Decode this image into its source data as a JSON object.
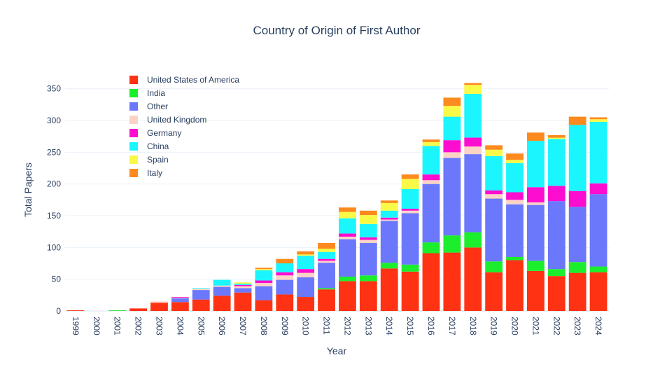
{
  "chart_data": {
    "type": "bar",
    "stacked": true,
    "title": "Country of Origin of First Author",
    "xlabel": "Year",
    "ylabel": "Total Papers",
    "ylim": [
      0,
      385
    ],
    "yticks": [
      0,
      50,
      100,
      150,
      200,
      250,
      300,
      350
    ],
    "grid": true,
    "legend_position": "top-left",
    "categories": [
      "1999",
      "2000",
      "2001",
      "2002",
      "2003",
      "2004",
      "2005",
      "2006",
      "2007",
      "2008",
      "2009",
      "2010",
      "2011",
      "2012",
      "2013",
      "2014",
      "2015",
      "2016",
      "2017",
      "2018",
      "2019",
      "2020",
      "2021",
      "2022",
      "2023",
      "2024"
    ],
    "series": [
      {
        "name": "United States of America",
        "color": "#ff3214",
        "values": [
          1,
          0,
          0,
          4,
          13,
          14,
          18,
          24,
          29,
          17,
          26,
          22,
          34,
          47,
          47,
          67,
          62,
          91,
          92,
          100,
          61,
          80,
          63,
          55,
          60,
          61
        ]
      },
      {
        "name": "India",
        "color": "#1aee2d",
        "values": [
          0,
          0,
          1,
          0,
          0,
          0,
          0,
          0,
          0,
          0,
          0,
          0,
          2,
          7,
          9,
          9,
          11,
          17,
          27,
          24,
          17,
          5,
          16,
          11,
          17,
          9
        ]
      },
      {
        "name": "Other",
        "color": "#6b78fb",
        "values": [
          0,
          0,
          0,
          0,
          0,
          6,
          15,
          14,
          7,
          22,
          23,
          31,
          40,
          59,
          51,
          66,
          81,
          92,
          122,
          123,
          99,
          83,
          88,
          107,
          87,
          114
        ]
      },
      {
        "name": "United Kingdom",
        "color": "#fcd3c6",
        "values": [
          0,
          0,
          0,
          0,
          2,
          1,
          2,
          2,
          3,
          5,
          7,
          7,
          3,
          4,
          5,
          2,
          4,
          6,
          9,
          12,
          7,
          7,
          4,
          0,
          0,
          0
        ]
      },
      {
        "name": "Germany",
        "color": "#fd0dd0",
        "values": [
          0,
          0,
          0,
          0,
          0,
          1,
          0,
          0,
          2,
          4,
          5,
          6,
          3,
          5,
          4,
          3,
          3,
          9,
          19,
          14,
          6,
          12,
          24,
          24,
          25,
          17
        ]
      },
      {
        "name": "China",
        "color": "#1bf6fe",
        "values": [
          0,
          0,
          0,
          0,
          0,
          0,
          1,
          9,
          2,
          16,
          14,
          21,
          11,
          24,
          21,
          11,
          31,
          45,
          37,
          69,
          54,
          46,
          73,
          74,
          104,
          97
        ]
      },
      {
        "name": "Spain",
        "color": "#f9f947",
        "values": [
          0,
          0,
          0,
          0,
          0,
          0,
          0,
          0,
          2,
          2,
          0,
          2,
          5,
          10,
          14,
          12,
          16,
          6,
          17,
          14,
          10,
          5,
          0,
          2,
          0,
          4
        ]
      },
      {
        "name": "Italy",
        "color": "#fc8a1e",
        "values": [
          0,
          0,
          0,
          0,
          0,
          0,
          0,
          0,
          0,
          2,
          7,
          5,
          9,
          7,
          7,
          4,
          7,
          4,
          13,
          3,
          7,
          10,
          13,
          4,
          13,
          3
        ]
      }
    ]
  }
}
